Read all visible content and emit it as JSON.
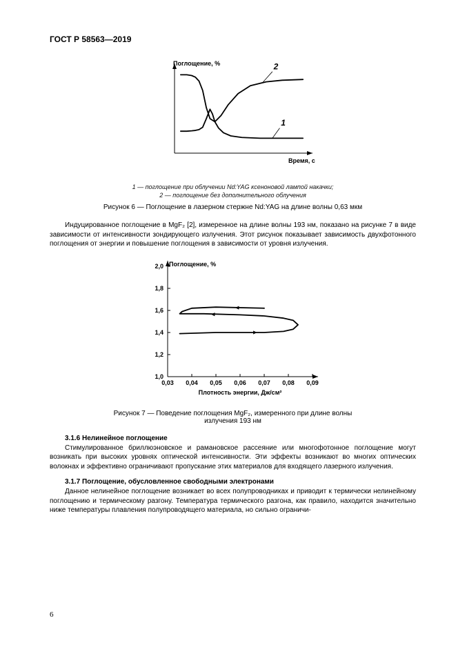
{
  "doc_code": "ГОСТ Р 58563—2019",
  "figure6": {
    "type": "line",
    "y_label": "Поглощение, %",
    "x_label": "Время, с",
    "curve_labels": {
      "curve1": "1",
      "curve2": "2"
    },
    "curve1_color": "#000000",
    "curve2_color": "#000000",
    "background_color": "#ffffff",
    "curve1_points": [
      [
        5,
        28
      ],
      [
        10,
        28
      ],
      [
        14,
        28.5
      ],
      [
        17,
        29
      ],
      [
        20,
        30
      ],
      [
        23,
        33
      ],
      [
        26,
        44
      ],
      [
        29,
        56
      ],
      [
        31,
        50
      ],
      [
        33,
        40
      ],
      [
        36,
        32
      ],
      [
        40,
        26
      ],
      [
        46,
        22
      ],
      [
        55,
        20
      ],
      [
        70,
        19
      ],
      [
        90,
        19
      ],
      [
        105,
        19
      ]
    ],
    "curve2_points": [
      [
        5,
        100
      ],
      [
        10,
        100
      ],
      [
        14,
        99
      ],
      [
        17,
        97
      ],
      [
        20,
        92
      ],
      [
        23,
        80
      ],
      [
        26,
        58
      ],
      [
        29,
        44
      ],
      [
        33,
        40
      ],
      [
        38,
        48
      ],
      [
        44,
        62
      ],
      [
        52,
        76
      ],
      [
        62,
        86
      ],
      [
        75,
        91
      ],
      [
        88,
        93
      ],
      [
        105,
        94
      ]
    ],
    "xlim": [
      0,
      110
    ],
    "ylim": [
      0,
      110
    ],
    "stroke_width": 1.8
  },
  "legend6_line1": "1 — поглощение при облучении Nd:YAG ксеноновой лампой накачки;",
  "legend6_line2": "2 — поглощение без дополнительного облучения",
  "caption6": "Рисунок 6 — Поглощение в лазерном стержне Nd:YAG на длине волны 0,63 мкм",
  "paragraph1": "Индуцированное поглощение в MgF₂ [2], измеренное на длине волны 193 нм, показано на рисунке 7 в виде зависимости от интенсивности зондирующего излучения. Этот рисунок показывает зависимость двухфотонного поглощения от энергии и повышение поглощения в зависимости от уровня излучения.",
  "figure7": {
    "type": "line",
    "y_label": "Поглощение, %",
    "x_label": "Плотность энергии, Дж/см²",
    "x_ticks": [
      "0,03",
      "0,04",
      "0,05",
      "0,06",
      "0,07",
      "0,08",
      "0,09"
    ],
    "y_ticks": [
      "1,0",
      "1,2",
      "1,4",
      "1,6",
      "1,8",
      "2,0"
    ],
    "xlim": [
      0.03,
      0.09
    ],
    "ylim": [
      1.0,
      2.0
    ],
    "curve_color": "#000000",
    "background_color": "#ffffff",
    "stroke_width": 1.8,
    "arrow_color": "#000000",
    "path_points": [
      [
        0.035,
        1.39
      ],
      [
        0.05,
        1.4
      ],
      [
        0.07,
        1.4
      ],
      [
        0.078,
        1.41
      ],
      [
        0.082,
        1.43
      ],
      [
        0.084,
        1.47
      ],
      [
        0.082,
        1.51
      ],
      [
        0.078,
        1.53
      ],
      [
        0.07,
        1.55
      ],
      [
        0.06,
        1.56
      ],
      [
        0.045,
        1.57
      ],
      [
        0.035,
        1.57
      ],
      [
        0.036,
        1.59
      ],
      [
        0.04,
        1.62
      ],
      [
        0.05,
        1.63
      ],
      [
        0.07,
        1.62
      ]
    ],
    "arrows": [
      {
        "from": [
          0.065,
          1.62
        ],
        "to": [
          0.058,
          1.625
        ]
      },
      {
        "from": [
          0.055,
          1.56
        ],
        "to": [
          0.048,
          1.565
        ]
      },
      {
        "from": [
          0.06,
          1.4
        ],
        "to": [
          0.067,
          1.4
        ]
      }
    ]
  },
  "caption7_line1": "Рисунок 7 — Поведение поглощения MgF₂, измеренного при длине волны",
  "caption7_line2": "излучения 193 нм",
  "section_316": "3.1.6 Нелинейное поглощение",
  "para_316": "Стимулированное бриллюэновское и рамановское рассеяние или многофотонное поглощение могут возникать при высоких уровнях оптической интенсивности. Эти эффекты возникают во многих оптических волокнах и эффективно ограничивают пропускание этих материалов для входящего лазерного излучения.",
  "section_317": "3.1.7 Поглощение, обусловленное свободными электронами",
  "para_317": "Данное нелинейное поглощение возникает во всех полупроводниках и приводит к термически нелинейному поглощению и термическому разгону. Температура термического разгона, как правило, находится значительно ниже температуры плавления полупроводящего материала, но сильно ограничи-",
  "page_number": "6"
}
